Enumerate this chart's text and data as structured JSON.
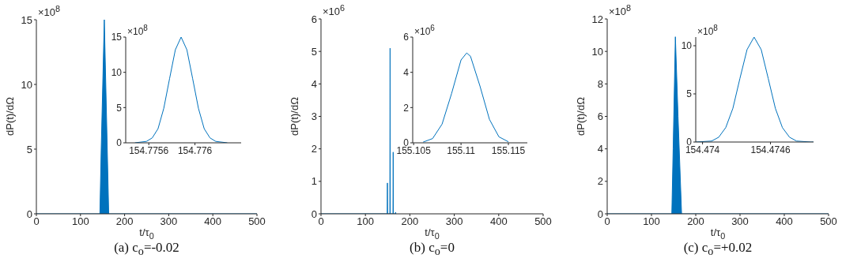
{
  "chart_data": [
    {
      "type": "area",
      "xlabel": "t/τ$_{0}$",
      "ylabel": "dP(t)/dΩ",
      "annotations": [
        "×10$^{8}$",
        "(a) c$_{o}$=-0.02"
      ],
      "color": "#0072bd",
      "x": [
        0,
        144,
        147,
        154,
        159,
        164,
        500
      ],
      "values": [
        0,
        0,
        5,
        15,
        7.5,
        0,
        0
      ],
      "xlim": [
        0,
        500
      ],
      "xticks": [
        0,
        100,
        200,
        300,
        400,
        500
      ],
      "ylim": [
        0,
        15
      ],
      "yticks": [
        0,
        5,
        10,
        15
      ]
    },
    {
      "type": "line",
      "annotations": [
        "×10$^{8}$"
      ],
      "color": "#0072bd",
      "x": [
        154.77548,
        154.77558,
        154.77563,
        154.77568,
        154.77573,
        154.77578,
        154.77583,
        154.77588,
        154.77593,
        154.77598,
        154.77603,
        154.77608,
        154.77613,
        154.77618,
        154.77628
      ],
      "values": [
        0,
        0.2,
        0.7,
        2,
        4.9,
        9.1,
        13.2,
        15,
        13.2,
        9.1,
        4.9,
        2,
        0.7,
        0.2,
        0
      ],
      "xlim": [
        154.7754,
        154.7764
      ],
      "xticks": [
        154.7756,
        154.776
      ],
      "ylim": [
        0,
        15
      ],
      "yticks": [
        0,
        5,
        10,
        15
      ]
    },
    {
      "type": "line",
      "xlabel": "t/τ$_{0}$",
      "ylabel": "dP(t)/dΩ",
      "annotations": [
        "×10$^{6}$",
        "(b) c$_{o}$=0"
      ],
      "color": "#0072bd",
      "x": [
        0,
        149,
        149.5,
        150,
        155,
        155.5,
        156,
        162,
        162.5,
        163,
        167.5,
        168,
        168.5
      ],
      "values": [
        0,
        0,
        0.95,
        0,
        0,
        5.1,
        0,
        0,
        1.9,
        0,
        0,
        0.05,
        0
      ],
      "xlim": [
        0,
        500
      ],
      "xticks": [
        0,
        100,
        200,
        300,
        400,
        500
      ],
      "ylim": [
        0,
        6
      ],
      "yticks": [
        0,
        1,
        2,
        3,
        4,
        5,
        6
      ]
    },
    {
      "type": "line",
      "annotations": [
        "×10$^{6}$"
      ],
      "color": "#0072bd",
      "x": [
        155.106,
        155.107,
        155.108,
        155.109,
        155.11,
        155.1106,
        155.111,
        155.112,
        155.113,
        155.114,
        155.115
      ],
      "values": [
        0.04,
        0.24,
        1.06,
        2.79,
        4.7,
        5.1,
        4.91,
        3.22,
        1.33,
        0.34,
        0.06
      ],
      "xlim": [
        155.1049,
        155.117
      ],
      "xticks": [
        155.105,
        155.11,
        155.115
      ],
      "ylim": [
        0,
        6
      ],
      "yticks": [
        0,
        2,
        4,
        6
      ]
    },
    {
      "type": "area",
      "xlabel": "t/τ$_{0}$",
      "ylabel": "dP(t)/dΩ",
      "annotations": [
        "×10$^{8}$",
        "(c) c$_{o}$=+0.02"
      ],
      "color": "#0072bd",
      "x": [
        0,
        146,
        149,
        154,
        160,
        168,
        500
      ],
      "values": [
        0,
        0,
        4,
        10.9,
        6,
        0,
        0
      ],
      "xlim": [
        0,
        500
      ],
      "xticks": [
        0,
        100,
        200,
        300,
        400,
        500
      ],
      "ylim": [
        0,
        12
      ],
      "yticks": [
        0,
        2,
        4,
        6,
        8,
        10,
        12
      ]
    },
    {
      "type": "line",
      "annotations": [
        "×10$^{8}$"
      ],
      "color": "#0072bd",
      "x": [
        154.47394,
        154.47408,
        154.474143,
        154.474205,
        154.474268,
        154.47433,
        154.474393,
        154.474455,
        154.474518,
        154.47458,
        154.474643,
        154.474705,
        154.474768,
        154.47483,
        154.474955,
        154.47498
      ],
      "values": [
        0,
        0.1,
        0.5,
        1.5,
        3.5,
        6.6,
        9.6,
        10.9,
        9.6,
        6.6,
        3.5,
        1.5,
        0.5,
        0.1,
        0,
        0
      ],
      "xlim": [
        154.47394,
        154.47498
      ],
      "xticks": [
        154.474,
        154.4746
      ],
      "ylim": [
        0,
        10.9
      ],
      "yticks": [
        0,
        5,
        10
      ]
    }
  ]
}
